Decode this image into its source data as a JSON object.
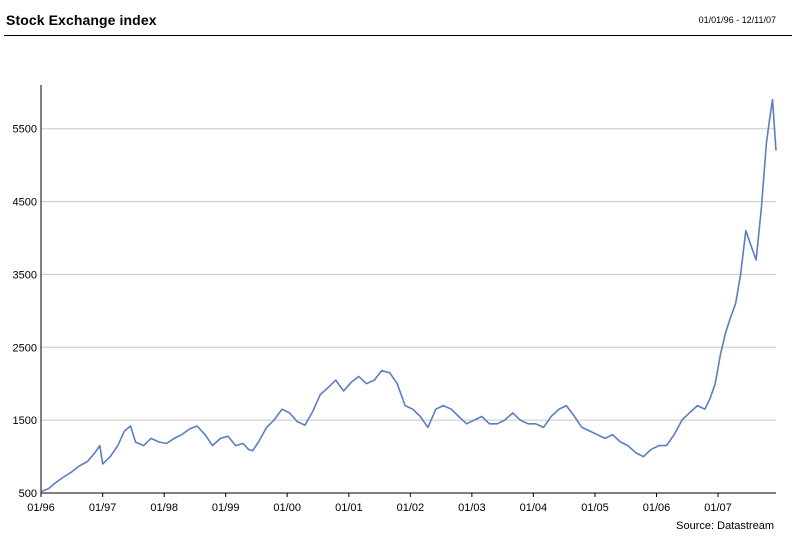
{
  "header": {
    "title": "Stock Exchange index",
    "date_range": "01/01/96 - 12/11/07"
  },
  "footer": {
    "source": "Source: Datastream"
  },
  "chart_data": {
    "type": "line",
    "title": "Stock Exchange index",
    "xlabel": "",
    "ylabel": "",
    "ylim": [
      500,
      6100
    ],
    "yticks": [
      500,
      1500,
      2500,
      3500,
      4500,
      5500
    ],
    "ytick_labels": [
      "500",
      "1500",
      "2500",
      "3500",
      "4500",
      "5500"
    ],
    "xlim": [
      "1996-01-01",
      "2007-12-11"
    ],
    "xticks": [
      "1996-01-01",
      "1997-01-01",
      "1998-01-01",
      "1999-01-01",
      "2000-01-01",
      "2001-01-01",
      "2002-01-01",
      "2003-01-01",
      "2004-01-01",
      "2005-01-01",
      "2006-01-01",
      "2007-01-01"
    ],
    "xtick_labels": [
      "01/96",
      "01/97",
      "01/98",
      "01/99",
      "01/00",
      "01/01",
      "01/02",
      "01/03",
      "01/04",
      "01/05",
      "01/06",
      "01/07"
    ],
    "grid": "horizontal",
    "series_color": "#5b7fbd",
    "series": [
      {
        "x": [
          "1996-01-01",
          "1996-02-15",
          "1996-04-01",
          "1996-05-15",
          "1996-07-01",
          "1996-08-15",
          "1996-10-01",
          "1996-11-15",
          "1996-12-15",
          "1997-01-01",
          "1997-02-15",
          "1997-04-01",
          "1997-05-10",
          "1997-06-15",
          "1997-07-15",
          "1997-09-01",
          "1997-10-15",
          "1997-12-01",
          "1998-01-15",
          "1998-03-01",
          "1998-04-15",
          "1998-06-01",
          "1998-07-15",
          "1998-09-01",
          "1998-10-15",
          "1998-12-01",
          "1999-01-15",
          "1999-03-01",
          "1999-04-15",
          "1999-05-15",
          "1999-06-10",
          "1999-07-15",
          "1999-09-01",
          "1999-10-15",
          "1999-12-01",
          "2000-01-15",
          "2000-03-01",
          "2000-04-15",
          "2000-06-01",
          "2000-07-15",
          "2000-09-01",
          "2000-10-15",
          "2000-12-01",
          "2001-01-15",
          "2001-03-01",
          "2001-04-15",
          "2001-06-01",
          "2001-07-15",
          "2001-09-01",
          "2001-10-15",
          "2001-12-01",
          "2002-01-15",
          "2002-03-01",
          "2002-04-15",
          "2002-06-01",
          "2002-07-15",
          "2002-09-01",
          "2002-10-15",
          "2002-12-01",
          "2003-01-15",
          "2003-03-01",
          "2003-04-15",
          "2003-06-01",
          "2003-07-15",
          "2003-09-01",
          "2003-10-15",
          "2003-12-01",
          "2004-01-15",
          "2004-03-01",
          "2004-04-15",
          "2004-06-01",
          "2004-07-15",
          "2004-09-01",
          "2004-10-15",
          "2004-12-01",
          "2005-01-15",
          "2005-03-01",
          "2005-04-15",
          "2005-06-01",
          "2005-07-15",
          "2005-09-01",
          "2005-10-15",
          "2005-12-01",
          "2006-01-15",
          "2006-03-01",
          "2006-04-15",
          "2006-06-01",
          "2006-07-15",
          "2006-09-01",
          "2006-10-15",
          "2006-11-15",
          "2006-12-15",
          "2007-01-15",
          "2007-02-15",
          "2007-03-15",
          "2007-04-15",
          "2007-05-15",
          "2007-06-15",
          "2007-07-15",
          "2007-08-15",
          "2007-09-15",
          "2007-10-15",
          "2007-11-01",
          "2007-11-20",
          "2007-12-11"
        ],
        "y": [
          520,
          560,
          650,
          720,
          790,
          870,
          930,
          1050,
          1150,
          900,
          1000,
          1150,
          1350,
          1420,
          1200,
          1150,
          1250,
          1200,
          1180,
          1250,
          1300,
          1380,
          1420,
          1300,
          1150,
          1250,
          1280,
          1150,
          1180,
          1100,
          1080,
          1200,
          1400,
          1500,
          1650,
          1600,
          1480,
          1430,
          1620,
          1850,
          1950,
          2050,
          1900,
          2020,
          2100,
          2000,
          2050,
          2180,
          2150,
          2000,
          1700,
          1650,
          1550,
          1400,
          1650,
          1700,
          1650,
          1550,
          1450,
          1500,
          1550,
          1450,
          1450,
          1500,
          1600,
          1500,
          1450,
          1450,
          1400,
          1550,
          1650,
          1700,
          1550,
          1400,
          1350,
          1300,
          1250,
          1300,
          1200,
          1150,
          1050,
          1000,
          1100,
          1150,
          1150,
          1300,
          1500,
          1600,
          1700,
          1650,
          1800,
          2000,
          2400,
          2700,
          2900,
          3100,
          3500,
          4100,
          3900,
          3700,
          4400,
          5300,
          5600,
          5900,
          5200
        ]
      }
    ]
  }
}
